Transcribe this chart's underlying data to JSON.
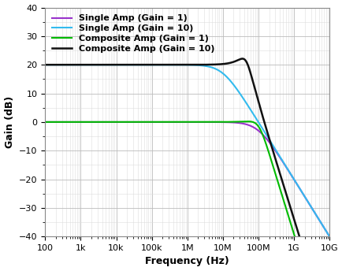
{
  "xlabel": "Frequency (Hz)",
  "ylabel": "Gain (dB)",
  "ylim": [
    -40,
    40
  ],
  "yticks": [
    -40,
    -30,
    -20,
    -10,
    0,
    10,
    20,
    30,
    40
  ],
  "xtick_labels": [
    "100",
    "1k",
    "10k",
    "100k",
    "1M",
    "10M",
    "100M",
    "1G",
    "10G"
  ],
  "xtick_vals": [
    100,
    1000,
    10000,
    100000,
    1000000,
    10000000,
    100000000,
    1000000000,
    10000000000
  ],
  "lines": {
    "single_amp_gain1": {
      "label": "Single Amp (Gain = 1)",
      "color": "#9933CC",
      "linewidth": 1.5,
      "GBW": 100000000.0,
      "dc_gain": 1.0
    },
    "single_amp_gain10": {
      "label": "Single Amp (Gain = 10)",
      "color": "#33BBEE",
      "linewidth": 1.5,
      "GBW": 100000000.0,
      "dc_gain": 10.0
    },
    "composite_amp_gain1": {
      "label": "Composite Amp (Gain = 1)",
      "color": "#00BB00",
      "linewidth": 1.5
    },
    "composite_amp_gain10": {
      "label": "Composite Amp (Gain = 10)",
      "color": "#111111",
      "linewidth": 1.8
    }
  },
  "GBW": 100000000.0,
  "background_color": "#ffffff",
  "grid_major_color": "#bbbbbb",
  "grid_minor_color": "#dddddd",
  "legend_fontsize": 8,
  "legend_loc": "upper left",
  "axes_label_fontsize": 9,
  "tick_fontsize": 8
}
